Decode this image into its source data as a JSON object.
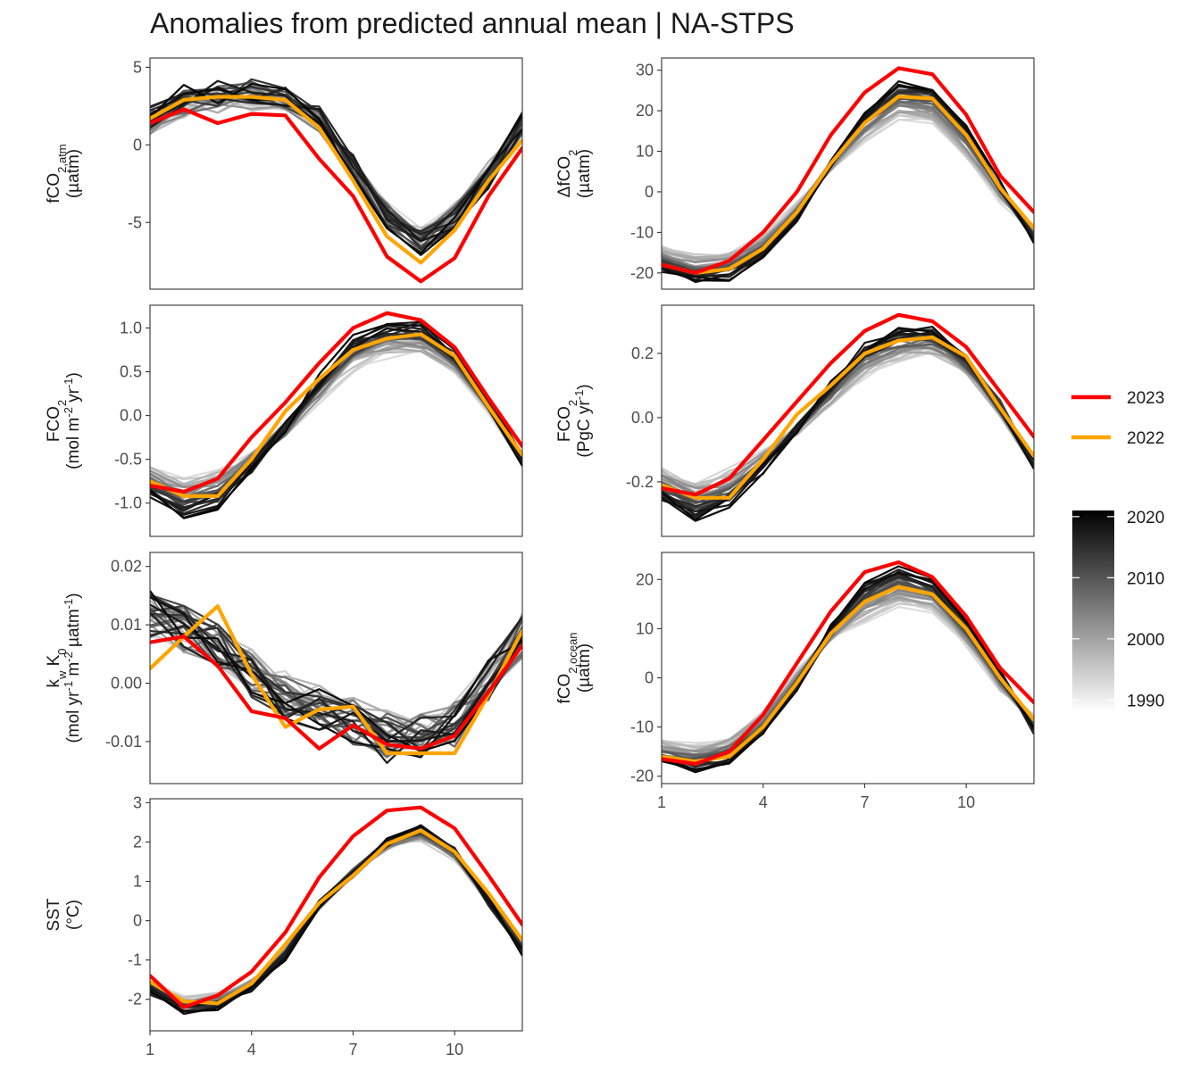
{
  "title": "Anomalies from predicted annual mean | NA-STPS",
  "legend": {
    "lines": [
      {
        "label": "2023",
        "color": "#ff0000"
      },
      {
        "label": "2022",
        "color": "#ffa500"
      }
    ],
    "gradient": {
      "ticks": [
        "2020",
        "2010",
        "2000",
        "1990"
      ],
      "tick_values": [
        2020,
        2010,
        2000,
        1990
      ],
      "range": [
        1988,
        2021
      ],
      "color_low": "#ffffff",
      "color_high": "#000000"
    }
  },
  "chart_data": [
    {
      "type": "line",
      "name": "fco2atm",
      "ylabel_html": "fCO<tspan baseline-shift='sub' font-size='13'>2,atm</tspan>",
      "ylabel_unit": "(µatm)",
      "ylim": [
        -9.3,
        5.6
      ],
      "yticks": [
        5,
        0,
        -5
      ],
      "ytick_labels": [
        "5",
        "0",
        "-5"
      ],
      "xlim": [
        1,
        12
      ],
      "xticks": [
        1,
        4,
        7,
        10
      ],
      "months": [
        1,
        2,
        3,
        4,
        5,
        6,
        7,
        8,
        9,
        10,
        11,
        12
      ],
      "years": [
        1990,
        2023
      ],
      "mean_min": [
        1.0,
        2.3,
        2.7,
        2.9,
        2.7,
        1.2,
        -1.6,
        -4.3,
        -5.7,
        -4.4,
        -1.8,
        0.9
      ],
      "mean_max": [
        1.8,
        3.2,
        3.4,
        3.6,
        3.3,
        1.8,
        -1.3,
        -4.8,
        -6.5,
        -5.0,
        -2.1,
        1.7
      ],
      "noise": 0.8,
      "series": [
        {
          "name": "2023",
          "values": [
            1.4,
            2.3,
            1.4,
            2.0,
            1.9,
            -0.9,
            -3.3,
            -7.2,
            -8.8,
            -7.3,
            -3.3,
            -0.2
          ]
        },
        {
          "name": "2022",
          "values": [
            1.7,
            2.9,
            3.1,
            3.1,
            2.9,
            1.1,
            -2.3,
            -5.9,
            -7.6,
            -5.5,
            -2.3,
            0.3
          ]
        }
      ]
    },
    {
      "type": "line",
      "name": "dfco2",
      "ylabel_html": "ΔfCO<tspan baseline-shift='sub' font-size='13'>2</tspan>",
      "ylabel_unit": "(µatm)",
      "ylim": [
        -24,
        33
      ],
      "yticks": [
        30,
        20,
        10,
        0,
        -10,
        -20
      ],
      "ytick_labels": [
        "30",
        "20",
        "10",
        "0",
        "-10",
        "-20"
      ],
      "xlim": [
        1,
        12
      ],
      "xticks": [
        1,
        4,
        7,
        10
      ],
      "months": [
        1,
        2,
        3,
        4,
        5,
        6,
        7,
        8,
        9,
        10,
        11,
        12
      ],
      "years": [
        1990,
        2023
      ],
      "mean_min": [
        -14,
        -15.5,
        -15,
        -11,
        -3,
        6,
        13,
        18,
        17,
        9,
        -2,
        -9
      ],
      "mean_max": [
        -19,
        -22,
        -21,
        -16,
        -7,
        7,
        19,
        27,
        26,
        16,
        2,
        -12
      ],
      "noise": 1.0,
      "series": [
        {
          "name": "2023",
          "values": [
            -18,
            -20,
            -17,
            -10,
            0,
            14,
            24.5,
            30.5,
            29,
            19,
            4,
            -5
          ]
        },
        {
          "name": "2022",
          "values": [
            -18,
            -20,
            -19,
            -14,
            -5,
            7,
            17,
            23.5,
            23,
            14,
            1,
            -9
          ]
        }
      ]
    },
    {
      "type": "line",
      "name": "fco2_mol",
      "ylabel_html": "FCO<tspan baseline-shift='sub' font-size='13'>2</tspan>",
      "ylabel_unit_html": "(mol m<tspan baseline-shift='super' font-size='13'>-2</tspan> yr<tspan baseline-shift='super' font-size='13'>-1</tspan>)",
      "ylim": [
        -1.38,
        1.26
      ],
      "yticks": [
        1.0,
        0.5,
        0.0,
        -0.5,
        -1.0
      ],
      "ytick_labels": [
        "1.0",
        "0.5",
        "0.0",
        "-0.5",
        "-1.0"
      ],
      "xlim": [
        1,
        12
      ],
      "xticks": [
        1,
        4,
        7,
        10
      ],
      "months": [
        1,
        2,
        3,
        4,
        5,
        6,
        7,
        8,
        9,
        10,
        11,
        12
      ],
      "years": [
        1990,
        2023
      ],
      "mean_min": [
        -0.6,
        -0.75,
        -0.65,
        -0.45,
        -0.15,
        0.2,
        0.55,
        0.72,
        0.74,
        0.55,
        0.1,
        -0.5
      ],
      "mean_max": [
        -0.9,
        -1.15,
        -1.0,
        -0.6,
        -0.15,
        0.4,
        0.85,
        1.0,
        1.02,
        0.72,
        0.15,
        -0.5
      ],
      "noise": 0.08,
      "series": [
        {
          "name": "2023",
          "values": [
            -0.8,
            -0.87,
            -0.72,
            -0.25,
            0.15,
            0.6,
            1.0,
            1.17,
            1.09,
            0.78,
            0.2,
            -0.35
          ]
        },
        {
          "name": "2022",
          "values": [
            -0.75,
            -0.92,
            -0.92,
            -0.5,
            0.05,
            0.42,
            0.75,
            0.88,
            0.93,
            0.68,
            0.1,
            -0.45
          ]
        }
      ]
    },
    {
      "type": "line",
      "name": "fco2_pgc",
      "ylabel_html": "FCO<tspan baseline-shift='sub' font-size='13'>2</tspan>",
      "ylabel_unit_html": "(PgC yr<tspan baseline-shift='super' font-size='13'>-1</tspan>)",
      "ylim": [
        -0.37,
        0.35
      ],
      "yticks": [
        0.2,
        0.0,
        -0.2
      ],
      "ytick_labels": [
        "0.2",
        "0.0",
        "-0.2"
      ],
      "xlim": [
        1,
        12
      ],
      "xticks": [
        1,
        4,
        7,
        10
      ],
      "months": [
        1,
        2,
        3,
        4,
        5,
        6,
        7,
        8,
        9,
        10,
        11,
        12
      ],
      "years": [
        1990,
        2023
      ],
      "mean_min": [
        -0.16,
        -0.2,
        -0.17,
        -0.11,
        -0.04,
        0.05,
        0.14,
        0.19,
        0.2,
        0.14,
        0.02,
        -0.14
      ],
      "mean_max": [
        -0.25,
        -0.31,
        -0.27,
        -0.16,
        -0.04,
        0.1,
        0.22,
        0.27,
        0.27,
        0.19,
        0.04,
        -0.14
      ],
      "noise": 0.02,
      "series": [
        {
          "name": "2023",
          "values": [
            -0.22,
            -0.24,
            -0.19,
            -0.07,
            0.05,
            0.17,
            0.27,
            0.32,
            0.3,
            0.22,
            0.08,
            -0.06
          ]
        },
        {
          "name": "2022",
          "values": [
            -0.21,
            -0.25,
            -0.25,
            -0.13,
            0.01,
            0.1,
            0.2,
            0.24,
            0.25,
            0.19,
            0.03,
            -0.12
          ]
        }
      ]
    },
    {
      "type": "line",
      "name": "kwk0",
      "ylabel_html": "k<tspan baseline-shift='sub' font-size='13'>w</tspan> K<tspan baseline-shift='sub' font-size='13'>0</tspan>",
      "ylabel_unit_html": "(mol yr<tspan baseline-shift='super' font-size='13'>-1</tspan> m<tspan baseline-shift='super' font-size='13'>-2</tspan> µatm<tspan baseline-shift='super' font-size='13'>-1</tspan>)",
      "ylim": [
        -0.0172,
        0.0224
      ],
      "yticks": [
        0.02,
        0.01,
        0.0,
        -0.01
      ],
      "ytick_labels": [
        "0.02",
        "0.01",
        "0.00",
        "-0.01"
      ],
      "xlim": [
        1,
        12
      ],
      "xticks": [
        1,
        4,
        7,
        10
      ],
      "months": [
        1,
        2,
        3,
        4,
        5,
        6,
        7,
        8,
        9,
        10,
        11,
        12
      ],
      "years": [
        1990,
        2023
      ],
      "mean_min": [
        0.011,
        0.009,
        0.006,
        0.002,
        -0.001,
        -0.004,
        -0.006,
        -0.008,
        -0.008,
        -0.006,
        0.0,
        0.008
      ],
      "mean_max": [
        0.012,
        0.01,
        0.007,
        0.001,
        -0.003,
        -0.005,
        -0.007,
        -0.01,
        -0.01,
        -0.008,
        0.0,
        0.009
      ],
      "noise": 0.004,
      "series": [
        {
          "name": "2023",
          "values": [
            0.007,
            0.008,
            0.003,
            -0.0048,
            -0.006,
            -0.0112,
            -0.0072,
            -0.0105,
            -0.0112,
            -0.009,
            -0.0015,
            0.0065
          ]
        },
        {
          "name": "2022",
          "values": [
            0.0025,
            0.008,
            0.0132,
            0.0015,
            -0.0075,
            -0.0045,
            -0.004,
            -0.012,
            -0.012,
            -0.012,
            -0.002,
            0.009
          ]
        }
      ]
    },
    {
      "type": "line",
      "name": "fco2ocean",
      "ylabel_html": "fCO<tspan baseline-shift='sub' font-size='13'>2,ocean</tspan>",
      "ylabel_unit": "(µatm)",
      "ylim": [
        -21.5,
        25.5
      ],
      "yticks": [
        20,
        10,
        0,
        -10,
        -20
      ],
      "ytick_labels": [
        "20",
        "10",
        "0",
        "-10",
        "-20"
      ],
      "xlim": [
        1,
        12
      ],
      "xticks": [
        1,
        4,
        7,
        10
      ],
      "months": [
        1,
        2,
        3,
        4,
        5,
        6,
        7,
        8,
        9,
        10,
        11,
        12
      ],
      "years": [
        1990,
        2023
      ],
      "mean_min": [
        -13,
        -14,
        -12,
        -7,
        1,
        8,
        12,
        15,
        14,
        7,
        -2,
        -8
      ],
      "mean_max": [
        -17,
        -18.5,
        -17,
        -11,
        -2,
        10,
        19,
        22.5,
        19.5,
        11,
        1,
        -11
      ],
      "noise": 0.9,
      "series": [
        {
          "name": "2023",
          "values": [
            -16.5,
            -17.5,
            -15,
            -7.5,
            3,
            13.5,
            21.5,
            23.5,
            20.5,
            12.5,
            2,
            -5
          ]
        },
        {
          "name": "2022",
          "values": [
            -16,
            -17,
            -16,
            -10,
            -1,
            9,
            15.5,
            18.5,
            17,
            10,
            0,
            -8.5
          ]
        }
      ]
    },
    {
      "type": "line",
      "name": "sst",
      "ylabel_html": "SST",
      "ylabel_unit": "(°C)",
      "ylim": [
        -2.8,
        3.1
      ],
      "yticks": [
        3,
        2,
        1,
        0,
        -1,
        -2
      ],
      "ytick_labels": [
        "3",
        "2",
        "1",
        "0",
        "-1",
        "-2"
      ],
      "xlim": [
        1,
        12
      ],
      "xticks": [
        1,
        4,
        7,
        10
      ],
      "months": [
        1,
        2,
        3,
        4,
        5,
        6,
        7,
        8,
        9,
        10,
        11,
        12
      ],
      "years": [
        1990,
        2023
      ],
      "mean_min": [
        -1.6,
        -2.0,
        -1.9,
        -1.6,
        -0.8,
        0.4,
        1.2,
        1.9,
        2.1,
        1.6,
        0.5,
        -0.6
      ],
      "mean_max": [
        -1.8,
        -2.3,
        -2.2,
        -1.7,
        -0.9,
        0.4,
        1.2,
        2.0,
        2.4,
        1.8,
        0.5,
        -0.8
      ],
      "noise": 0.12,
      "series": [
        {
          "name": "2023",
          "values": [
            -1.4,
            -2.2,
            -1.9,
            -1.3,
            -0.3,
            1.1,
            2.15,
            2.8,
            2.88,
            2.35,
            1.15,
            -0.1
          ]
        },
        {
          "name": "2022",
          "values": [
            -1.55,
            -2.05,
            -2.1,
            -1.6,
            -0.6,
            0.45,
            1.15,
            1.95,
            2.3,
            1.75,
            0.7,
            -0.5
          ]
        }
      ]
    }
  ]
}
